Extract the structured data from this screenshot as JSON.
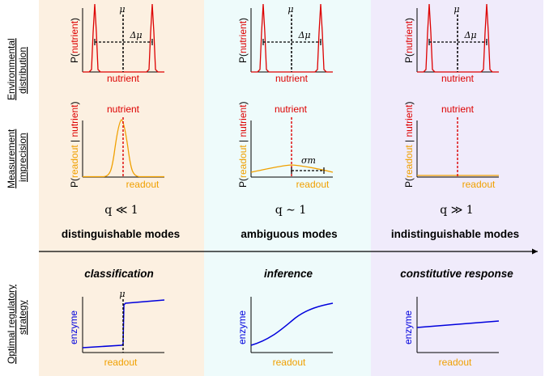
{
  "colors": {
    "panel_left": "#fcf0e1",
    "panel_mid": "#eefbfb",
    "panel_right": "#f0ebfb",
    "nutrient": "#dd0000",
    "readout": "#f0a000",
    "enzyme": "#0000dd",
    "axis": "#000000"
  },
  "row_labels": {
    "environmental_line1": "Environmental",
    "environmental_line2": "distribution",
    "measurement_line1": "Measurement",
    "measurement_line2": "imprecision",
    "strategy_line1": "Optimal regulatory",
    "strategy_line2": "strategy"
  },
  "labels": {
    "mu": "μ",
    "delta_mu": "Δμ",
    "sigma_m": "σm",
    "nutrient": "nutrient",
    "readout": "readout",
    "enzyme": "enzyme",
    "p_nutrient_open": "P(",
    "p_nutrient_word": "nutrient",
    "p_nutrient_close": ")",
    "p_readout_open": "P(",
    "p_readout_word": "readout",
    "p_readout_sep": " | ",
    "p_readout_close": ")"
  },
  "columns": [
    {
      "q_label": "q ≪ 1",
      "mode": "distinguishable modes",
      "strategy": "classification"
    },
    {
      "q_label": "q ∼ 1",
      "mode": "ambiguous modes",
      "strategy": "inference"
    },
    {
      "q_label": "q ≫ 1",
      "mode": "indistinguishable modes",
      "strategy": "constitutive response"
    }
  ]
}
